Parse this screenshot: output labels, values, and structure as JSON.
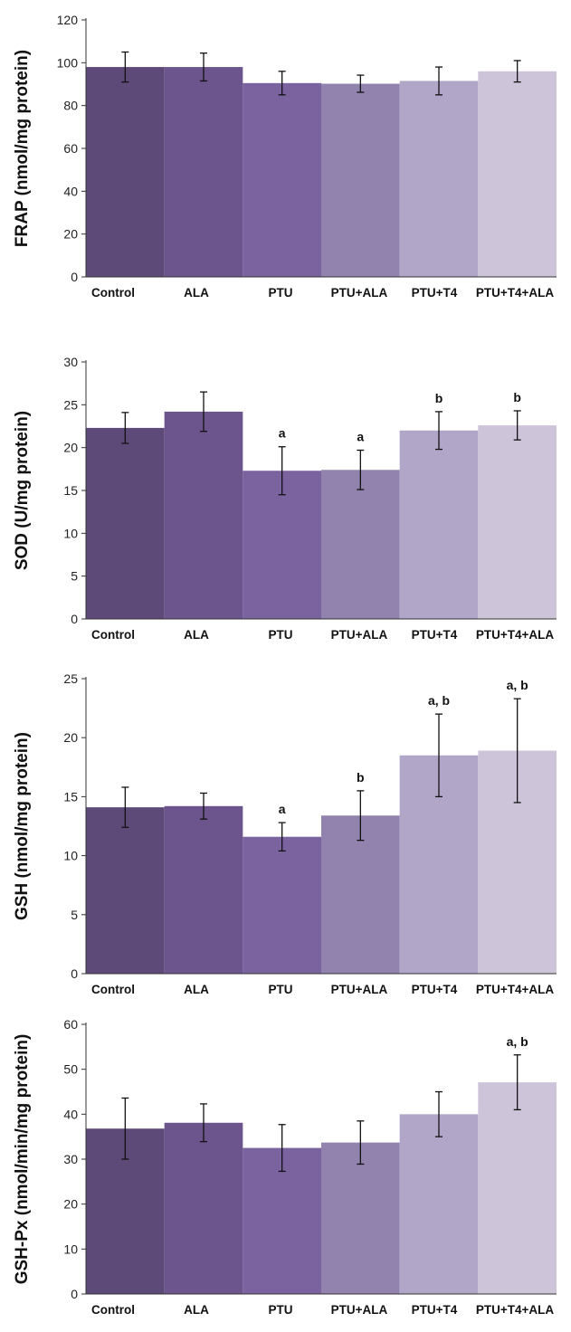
{
  "colors": [
    "#5d4a78",
    "#6c548d",
    "#7b63a0",
    "#9282ae",
    "#b1a6c8",
    "#cdc4da"
  ],
  "chart_data": [
    {
      "type": "bar",
      "ylabel": "FRAP (nmol/mg protein)",
      "categories": [
        "Control",
        "ALA",
        "PTU",
        "PTU+ALA",
        "PTU+T4",
        "PTU+T4+ALA"
      ],
      "values": [
        98,
        98,
        90.5,
        90.2,
        91.5,
        96
      ],
      "errors": [
        7,
        6.5,
        5.5,
        4,
        6.5,
        5
      ],
      "annotations": [
        "",
        "",
        "",
        "",
        "",
        ""
      ],
      "ylim": [
        0,
        120
      ],
      "yticks": [
        0,
        20,
        40,
        60,
        80,
        100,
        120
      ]
    },
    {
      "type": "bar",
      "ylabel": "SOD (U/mg protein)",
      "categories": [
        "Control",
        "ALA",
        "PTU",
        "PTU+ALA",
        "PTU+T4",
        "PTU+T4+ALA"
      ],
      "values": [
        22.3,
        24.2,
        17.3,
        17.4,
        22,
        22.6
      ],
      "errors": [
        1.8,
        2.3,
        2.8,
        2.3,
        2.2,
        1.7
      ],
      "annotations": [
        "",
        "",
        "a",
        "a",
        "b",
        "b"
      ],
      "ylim": [
        0,
        30
      ],
      "yticks": [
        0,
        5,
        10,
        15,
        20,
        25,
        30
      ]
    },
    {
      "type": "bar",
      "ylabel": "GSH (nmol/mg protein)",
      "categories": [
        "Control",
        "ALA",
        "PTU",
        "PTU+ALA",
        "PTU+T4",
        "PTU+T4+ALA"
      ],
      "values": [
        14.1,
        14.2,
        11.6,
        13.4,
        18.5,
        18.9
      ],
      "errors": [
        1.7,
        1.1,
        1.2,
        2.1,
        3.5,
        4.4
      ],
      "annotations": [
        "",
        "",
        "a",
        "b",
        "a, b",
        "a, b"
      ],
      "ylim": [
        0,
        25
      ],
      "yticks": [
        0,
        5,
        10,
        15,
        20,
        25
      ]
    },
    {
      "type": "bar",
      "ylabel": "GSH-Px (nmol/min/mg protein)",
      "categories": [
        "Control",
        "ALA",
        "PTU",
        "PTU+ALA",
        "PTU+T4",
        "PTU+T4+ALA"
      ],
      "values": [
        36.8,
        38.1,
        32.5,
        33.7,
        40,
        47.1
      ],
      "errors": [
        6.8,
        4.2,
        5.2,
        4.8,
        5,
        6.1
      ],
      "annotations": [
        "",
        "",
        "",
        "",
        "",
        "a, b"
      ],
      "ylim": [
        0,
        60
      ],
      "yticks": [
        0,
        10,
        20,
        30,
        40,
        50,
        60
      ]
    }
  ]
}
